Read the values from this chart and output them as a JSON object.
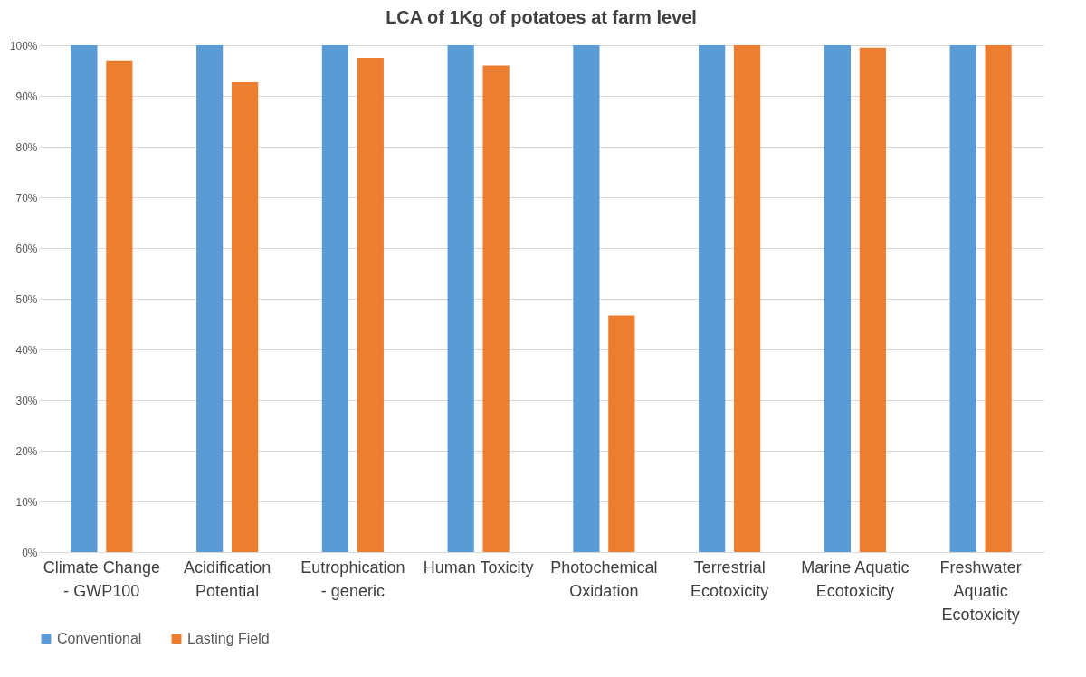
{
  "chart_data": {
    "type": "bar",
    "title": "LCA of 1Kg of potatoes at farm level",
    "categories": [
      "Climate Change - GWP100",
      "Acidification Potential",
      "Eutrophication - generic",
      "Human Toxicity",
      "Photochemical Oxidation",
      "Terrestrial Ecotoxicity",
      "Marine Aquatic Ecotoxicity",
      "Freshwater Aquatic Ecotoxicity"
    ],
    "series": [
      {
        "name": "Conventional",
        "color": "#5b9bd5",
        "values": [
          100,
          100,
          100,
          100,
          100,
          100,
          100,
          100
        ]
      },
      {
        "name": "Lasting Field",
        "color": "#ed7d31",
        "values": [
          97,
          92.7,
          97.5,
          96,
          46.7,
          100,
          99.5,
          100
        ]
      }
    ],
    "ylim": [
      0,
      100
    ],
    "yticks": [
      {
        "value": 0,
        "label": "0%"
      },
      {
        "value": 10,
        "label": "10%"
      },
      {
        "value": 20,
        "label": "20%"
      },
      {
        "value": 30,
        "label": "30%"
      },
      {
        "value": 40,
        "label": "40%"
      },
      {
        "value": 50,
        "label": "50%"
      },
      {
        "value": 60,
        "label": "60%"
      },
      {
        "value": 70,
        "label": "70%"
      },
      {
        "value": 80,
        "label": "80%"
      },
      {
        "value": 90,
        "label": "90%"
      },
      {
        "value": 100,
        "label": "100%"
      }
    ],
    "grid": "y",
    "legend": "bottom"
  }
}
